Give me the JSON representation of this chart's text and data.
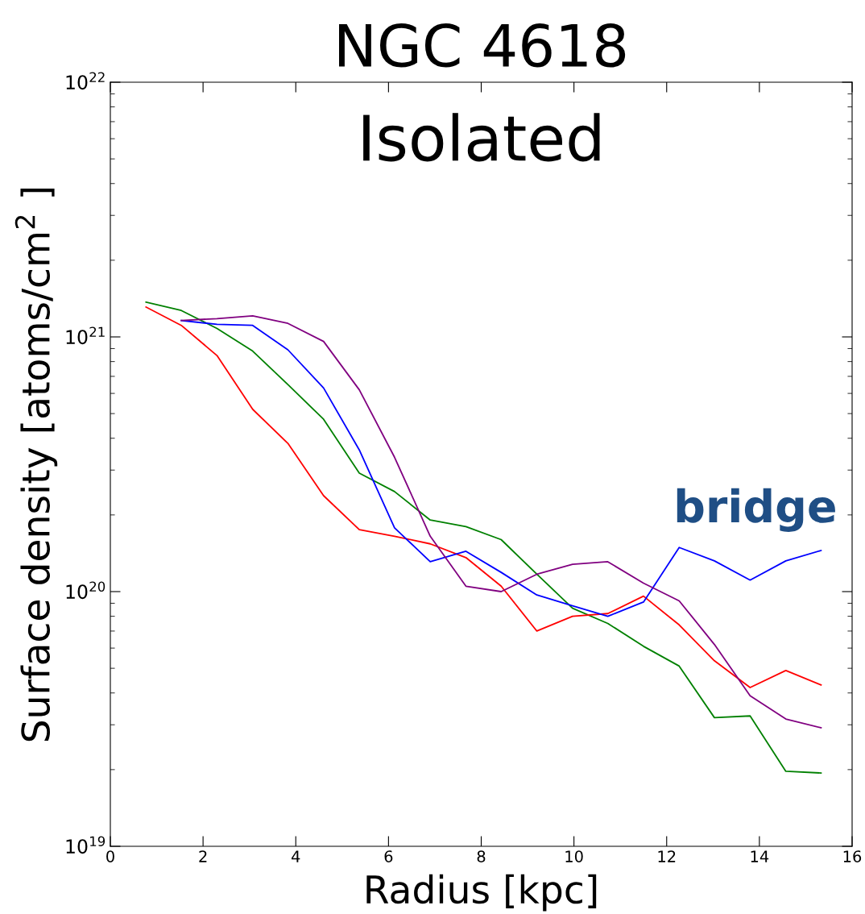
{
  "chart_data": {
    "type": "line",
    "title": "NGC 4618",
    "xlabel": "Radius [kpc]",
    "ylabel": "Surface density [atoms/cm$^{2}$ ]",
    "annotations": [
      "Isolated",
      "bridge"
    ],
    "log": "y",
    "grid": false,
    "legend": false,
    "marker": "none",
    "line_style": "solid",
    "xlim": [
      0,
      16
    ],
    "xticks": [
      0,
      2,
      4,
      6,
      8,
      10,
      12,
      14,
      16
    ],
    "ylim": [
      1e+19,
      1e+22
    ],
    "yticks": [
      {
        "value": 1e+19,
        "label": "10$^{19}$"
      },
      {
        "value": 1e+20,
        "label": "10$^{20}$"
      },
      {
        "value": 1e+21,
        "label": "10$^{21}$"
      },
      {
        "value": 1e+22,
        "label": "10$^{22}$"
      }
    ],
    "series": [
      {
        "color": "#008000",
        "x": [
          0.77,
          1.53,
          2.3,
          3.07,
          3.83,
          4.6,
          5.37,
          6.13,
          6.9,
          7.67,
          8.43,
          9.2,
          9.97,
          10.73,
          11.5,
          12.27,
          13.03,
          13.8,
          14.57,
          15.33
        ],
        "values": [
          1.37e+21,
          1.27e+21,
          1.08e+21,
          8.8e+20,
          6.5e+20,
          4.75e+20,
          2.92e+20,
          2.47e+20,
          1.91e+20,
          1.8e+20,
          1.6e+20,
          1.17e+20,
          8.6e+19,
          7.5e+19,
          6.1e+19,
          5.1e+19,
          3.2e+19,
          3.25e+19,
          1.97e+19,
          1.94e+19
        ]
      },
      {
        "color": "#ff0000",
        "x": [
          0.77,
          1.53,
          2.3,
          3.07,
          3.83,
          4.6,
          5.37,
          6.13,
          6.9,
          7.67,
          8.43,
          9.2,
          9.97,
          10.73,
          11.5,
          12.27,
          13.03,
          13.8,
          14.57,
          15.33
        ],
        "values": [
          1.31e+21,
          1.11e+21,
          8.45e+20,
          5.2e+20,
          3.82e+20,
          2.38e+20,
          1.75e+20,
          1.65e+20,
          1.54e+20,
          1.36e+20,
          1.05e+20,
          7e+19,
          8e+19,
          8.2e+19,
          9.6e+19,
          7.4e+19,
          5.35e+19,
          4.2e+19,
          4.9e+19,
          4.3e+19
        ]
      },
      {
        "color": "#0000ff",
        "x": [
          1.53,
          2.3,
          3.07,
          3.83,
          4.6,
          5.37,
          6.13,
          6.9,
          7.67,
          8.43,
          9.2,
          9.97,
          10.73,
          11.5,
          12.27,
          13.03,
          13.8,
          14.57,
          15.33
        ],
        "values": [
          1.16e+21,
          1.12e+21,
          1.11e+21,
          8.9e+20,
          6.3e+20,
          3.6e+20,
          1.78e+20,
          1.31e+20,
          1.44e+20,
          1.19e+20,
          9.7e+19,
          8.8e+19,
          8e+19,
          9.1e+19,
          1.49e+20,
          1.32e+20,
          1.11e+20,
          1.32e+20,
          1.45e+20
        ]
      },
      {
        "color": "#800080",
        "x": [
          1.53,
          2.3,
          3.07,
          3.83,
          4.6,
          5.37,
          6.13,
          6.9,
          7.67,
          8.43,
          9.2,
          9.97,
          10.73,
          11.5,
          12.27,
          13.03,
          13.8,
          14.57,
          15.33
        ],
        "values": [
          1.16e+21,
          1.18e+21,
          1.21e+21,
          1.13e+21,
          9.6e+20,
          6.2e+20,
          3.37e+20,
          1.65e+20,
          1.05e+20,
          1e+20,
          1.17e+20,
          1.28e+20,
          1.31e+20,
          1.08e+20,
          9.2e+19,
          6.2e+19,
          3.9e+19,
          3.16e+19,
          2.92e+19
        ]
      }
    ]
  }
}
